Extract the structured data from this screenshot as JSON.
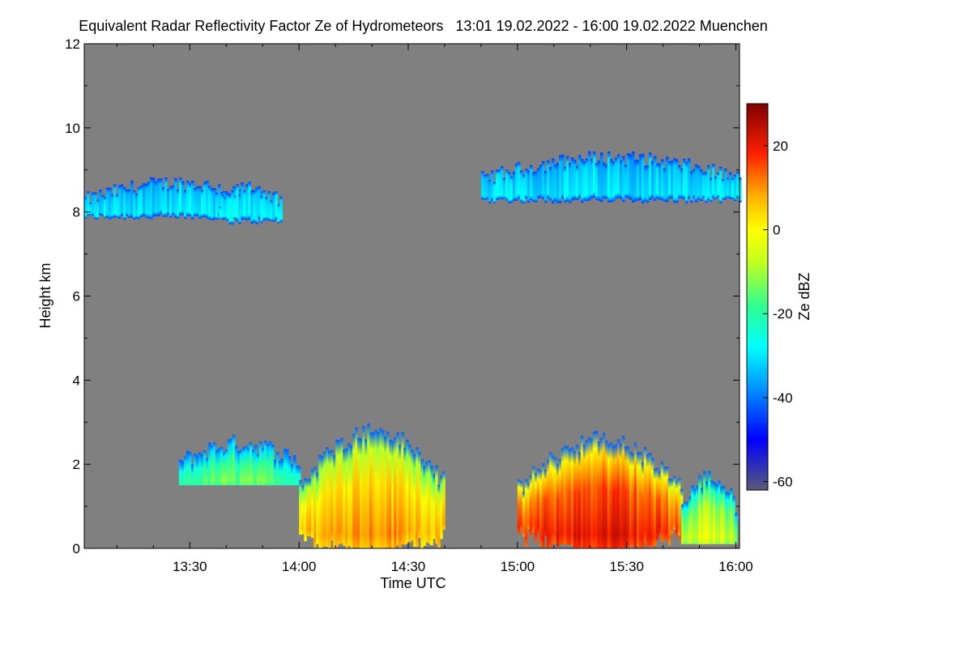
{
  "chart_data": {
    "type": "heatmap",
    "title": "Equivalent Radar Reflectivity Factor Ze of Hydrometeors",
    "time_range": "13:01 19.02.2022 - 16:00 19.02.2022",
    "location": "Muenchen",
    "xlabel": "Time UTC",
    "ylabel": "Height km",
    "x_range_minutes": [
      781,
      961
    ],
    "x_ticks": [
      {
        "minute": 810,
        "label": "13:30"
      },
      {
        "minute": 840,
        "label": "14:00"
      },
      {
        "minute": 870,
        "label": "14:30"
      },
      {
        "minute": 900,
        "label": "15:00"
      },
      {
        "minute": 930,
        "label": "15:30"
      },
      {
        "minute": 960,
        "label": "16:00"
      }
    ],
    "ylim": [
      0,
      12
    ],
    "y_ticks": [
      0,
      2,
      4,
      6,
      8,
      10,
      12
    ],
    "background_color": "#808080",
    "colorbar": {
      "label": "Ze dBZ",
      "range": [
        -62,
        30
      ],
      "ticks": [
        {
          "value": 20,
          "label": "20"
        },
        {
          "value": 0,
          "label": "0"
        },
        {
          "value": -20,
          "label": "-20"
        },
        {
          "value": -40,
          "label": "-40"
        },
        {
          "value": -60,
          "label": "-60"
        }
      ],
      "stops": [
        {
          "value": -62,
          "color": "#5a5a78"
        },
        {
          "value": -50,
          "color": "#0000ff"
        },
        {
          "value": -38,
          "color": "#0090ff"
        },
        {
          "value": -28,
          "color": "#00ffff"
        },
        {
          "value": -18,
          "color": "#30ff90"
        },
        {
          "value": -8,
          "color": "#c0ff20"
        },
        {
          "value": 0,
          "color": "#ffff00"
        },
        {
          "value": 8,
          "color": "#ffb000"
        },
        {
          "value": 18,
          "color": "#ff2000"
        },
        {
          "value": 30,
          "color": "#800000"
        }
      ]
    },
    "echo_regions": [
      {
        "name": "upper-cirrus-west",
        "t_start": 781,
        "t_end": 830,
        "base_km": 7.8,
        "top_km": 8.7,
        "ze_dbz": -30
      },
      {
        "name": "upper-cirrus-mid",
        "t_start": 818,
        "t_end": 835,
        "base_km": 7.7,
        "top_km": 8.6,
        "ze_dbz": -28
      },
      {
        "name": "upper-cirrus-east",
        "t_start": 890,
        "t_end": 961,
        "base_km": 8.2,
        "top_km": 9.3,
        "ze_dbz": -30
      },
      {
        "name": "lower-precip-west",
        "t_start": 807,
        "t_end": 840,
        "base_km": 1.5,
        "top_km": 2.5,
        "ze_dbz": -20
      },
      {
        "name": "lower-precip-core1",
        "t_start": 840,
        "t_end": 880,
        "base_km": 0.0,
        "top_km": 2.8,
        "ze_dbz": 5
      },
      {
        "name": "lower-precip-core2",
        "t_start": 900,
        "t_end": 945,
        "base_km": 0.0,
        "top_km": 2.6,
        "ze_dbz": 15
      },
      {
        "name": "lower-precip-east",
        "t_start": 945,
        "t_end": 960,
        "base_km": 0.1,
        "top_km": 1.7,
        "ze_dbz": -10
      }
    ]
  }
}
